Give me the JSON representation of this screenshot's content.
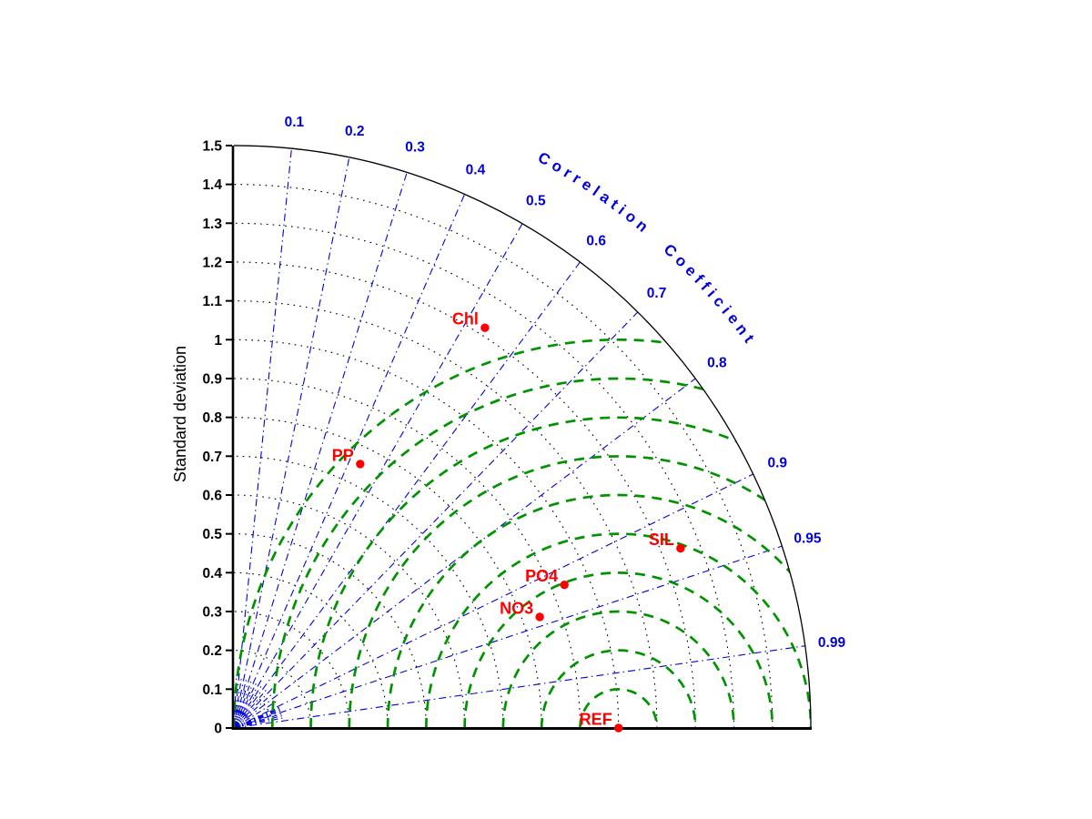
{
  "figure": {
    "background": "#ffffff"
  },
  "colors": {
    "correlation": "#0000dd",
    "std_grid": "#000000",
    "rms_contours": "#009300",
    "points": "#ff0000",
    "axis": "#000000"
  },
  "chart_data": {
    "type": "scatter",
    "subtype": "taylor-diagram",
    "ylabel": "Standard deviation",
    "correlation_axis_label": "Correlation Coefficient",
    "std_max": 1.5,
    "std_grid_step": 0.1,
    "std_ticks": [
      {
        "value": 0,
        "label": "0"
      },
      {
        "value": 0.1,
        "label": "0.1"
      },
      {
        "value": 0.2,
        "label": "0.2"
      },
      {
        "value": 0.3,
        "label": "0.3"
      },
      {
        "value": 0.4,
        "label": "0.4"
      },
      {
        "value": 0.5,
        "label": "0.5"
      },
      {
        "value": 0.6,
        "label": "0.6"
      },
      {
        "value": 0.7,
        "label": "0.7"
      },
      {
        "value": 0.8,
        "label": "0.8"
      },
      {
        "value": 0.9,
        "label": "0.9"
      },
      {
        "value": 1,
        "label": "1"
      },
      {
        "value": 1.1,
        "label": "1.1"
      },
      {
        "value": 1.2,
        "label": "1.2"
      },
      {
        "value": 1.3,
        "label": "1.3"
      },
      {
        "value": 1.4,
        "label": "1.4"
      },
      {
        "value": 1.5,
        "label": "1.5"
      }
    ],
    "correlation_major_ticks": [
      {
        "value": 0.1,
        "label": "0.1"
      },
      {
        "value": 0.2,
        "label": "0.2"
      },
      {
        "value": 0.3,
        "label": "0.3"
      },
      {
        "value": 0.4,
        "label": "0.4"
      },
      {
        "value": 0.5,
        "label": "0.5"
      },
      {
        "value": 0.6,
        "label": "0.6"
      },
      {
        "value": 0.7,
        "label": "0.7"
      },
      {
        "value": 0.8,
        "label": "0.8"
      },
      {
        "value": 0.9,
        "label": "0.9"
      },
      {
        "value": 0.95,
        "label": "0.95"
      },
      {
        "value": 0.99,
        "label": "0.99"
      }
    ],
    "correlation_minor_ticks": [
      0.05,
      0.15,
      0.25,
      0.35,
      0.45,
      0.55,
      0.65,
      0.75,
      0.85,
      0.91,
      0.92,
      0.93,
      0.94,
      0.96,
      0.97,
      0.98
    ],
    "rms_contours": [
      0.1,
      0.2,
      0.3,
      0.4,
      0.5,
      0.6,
      0.7,
      0.8,
      0.9,
      1.0
    ],
    "reference": {
      "label": "REF",
      "std": 1.0,
      "corr": 1.0
    },
    "points": [
      {
        "label": "Chl",
        "std": 1.22,
        "corr": 0.535
      },
      {
        "label": "PP",
        "std": 0.755,
        "corr": 0.435
      },
      {
        "label": "SIL",
        "std": 1.25,
        "corr": 0.929
      },
      {
        "label": "PO4",
        "std": 0.935,
        "corr": 0.919
      },
      {
        "label": "NO3",
        "std": 0.845,
        "corr": 0.941
      }
    ]
  }
}
